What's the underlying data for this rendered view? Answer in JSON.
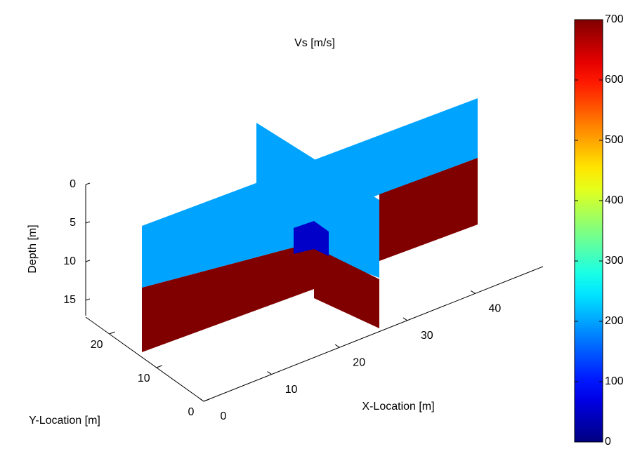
{
  "chart_data": {
    "type": "slice3d",
    "title": "Vs [m/s]",
    "xlabel": "X-Location [m]",
    "ylabel": "Y-Location [m]",
    "zlabel": "Depth [m]",
    "xlim": [
      0,
      50
    ],
    "xticks": [
      0,
      10,
      20,
      30,
      40
    ],
    "ylim": [
      0,
      25
    ],
    "yticks": [
      0,
      10,
      20
    ],
    "zlim": [
      0,
      17
    ],
    "zticks": [
      0,
      5,
      10,
      15
    ],
    "colormap": "jet",
    "clim": [
      0,
      700
    ],
    "cticks": [
      0,
      100,
      200,
      300,
      400,
      500,
      600,
      700
    ],
    "values": [
      200,
      700,
      50
    ]
  }
}
